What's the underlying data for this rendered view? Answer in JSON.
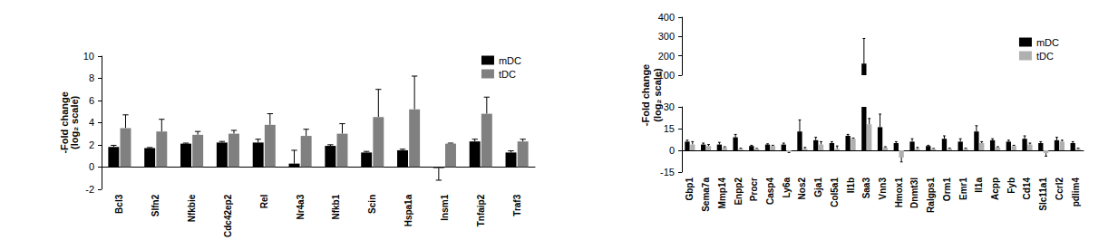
{
  "chart_data": [
    {
      "type": "bar",
      "ylabel": "-Fold change\n(log₂ scale)",
      "categories": [
        "Bcl3",
        "Slfn2",
        "Nfkbie",
        "Cdc42ep2",
        "Rel",
        "Nr4a3",
        "Nfkb1",
        "Scin",
        "Hspa1a",
        "Insm1",
        "Tnfaip2",
        "Traf3"
      ],
      "series": [
        {
          "name": "mDC",
          "color": "#000000",
          "values": [
            1.8,
            1.7,
            2.1,
            2.2,
            2.2,
            0.3,
            1.9,
            1.3,
            1.5,
            -0.1,
            2.3,
            1.3
          ],
          "errors": [
            0.15,
            0.05,
            0.05,
            0.1,
            0.3,
            1.2,
            0.1,
            0.1,
            0.1,
            1.1,
            0.2,
            0.15
          ]
        },
        {
          "name": "tDC",
          "color": "#808080",
          "values": [
            3.5,
            3.2,
            2.9,
            3.0,
            3.8,
            2.8,
            3.0,
            4.5,
            5.2,
            2.1,
            4.8,
            2.3
          ],
          "errors": [
            1.2,
            1.1,
            0.3,
            0.3,
            1.0,
            0.6,
            0.9,
            2.5,
            3.0,
            0.05,
            1.5,
            0.2
          ]
        }
      ],
      "ylim": [
        -2,
        10
      ],
      "yticks": [
        -2,
        0,
        2,
        4,
        6,
        8,
        10
      ],
      "legend": "upper right",
      "grid": false
    },
    {
      "type": "bar",
      "ylabel": "-Fold change\n(log₂ scale)",
      "categories": [
        "Gbp1",
        "Sema7a",
        "Mmp14",
        "Enpp2",
        "Procr",
        "Casp4",
        "Ly6a",
        "Nos2",
        "Gja1",
        "Col5a1",
        "Il1b",
        "Saa3",
        "Vnn3",
        "Hmox1",
        "Dnmt3l",
        "Ralgps1",
        "Orm1",
        "Emr1",
        "Il1a",
        "Acpp",
        "Fyb",
        "Cd14",
        "Slc11a1",
        "Ccrl2",
        "pdlim4"
      ],
      "series": [
        {
          "name": "mDC",
          "color": "#000000",
          "values": [
            6,
            4,
            4,
            9,
            3,
            4,
            4,
            13,
            7,
            5,
            10,
            160,
            16,
            5,
            6,
            3,
            8,
            6,
            13,
            7,
            6,
            8,
            5,
            7,
            5
          ],
          "errors": [
            1,
            1,
            1.5,
            2,
            0.5,
            0.5,
            1,
            8,
            2,
            1,
            1,
            130,
            9,
            1,
            2,
            0.5,
            2,
            2,
            4,
            1,
            1,
            2,
            1,
            2,
            1
          ]
        },
        {
          "name": "tDC",
          "color": "#b0b0b0",
          "values": [
            4,
            3,
            2,
            1,
            1,
            3,
            -1,
            1,
            4,
            1,
            8,
            18,
            2,
            -5,
            1,
            1,
            1,
            1,
            5,
            2,
            3,
            4,
            -2,
            6,
            1
          ],
          "errors": [
            2,
            1,
            0.5,
            0.5,
            0.3,
            0.5,
            0.5,
            1,
            2,
            2,
            0.5,
            4,
            0.5,
            3,
            1,
            0.3,
            0.5,
            0.5,
            1,
            0.5,
            0.5,
            1,
            2,
            1,
            0.5
          ]
        }
      ],
      "ylim": [
        -15,
        400
      ],
      "yticks": [
        -15,
        0,
        15,
        30,
        100,
        200,
        300,
        400
      ],
      "ybreak": [
        30,
        100
      ],
      "legend": "upper right",
      "grid": false
    }
  ]
}
